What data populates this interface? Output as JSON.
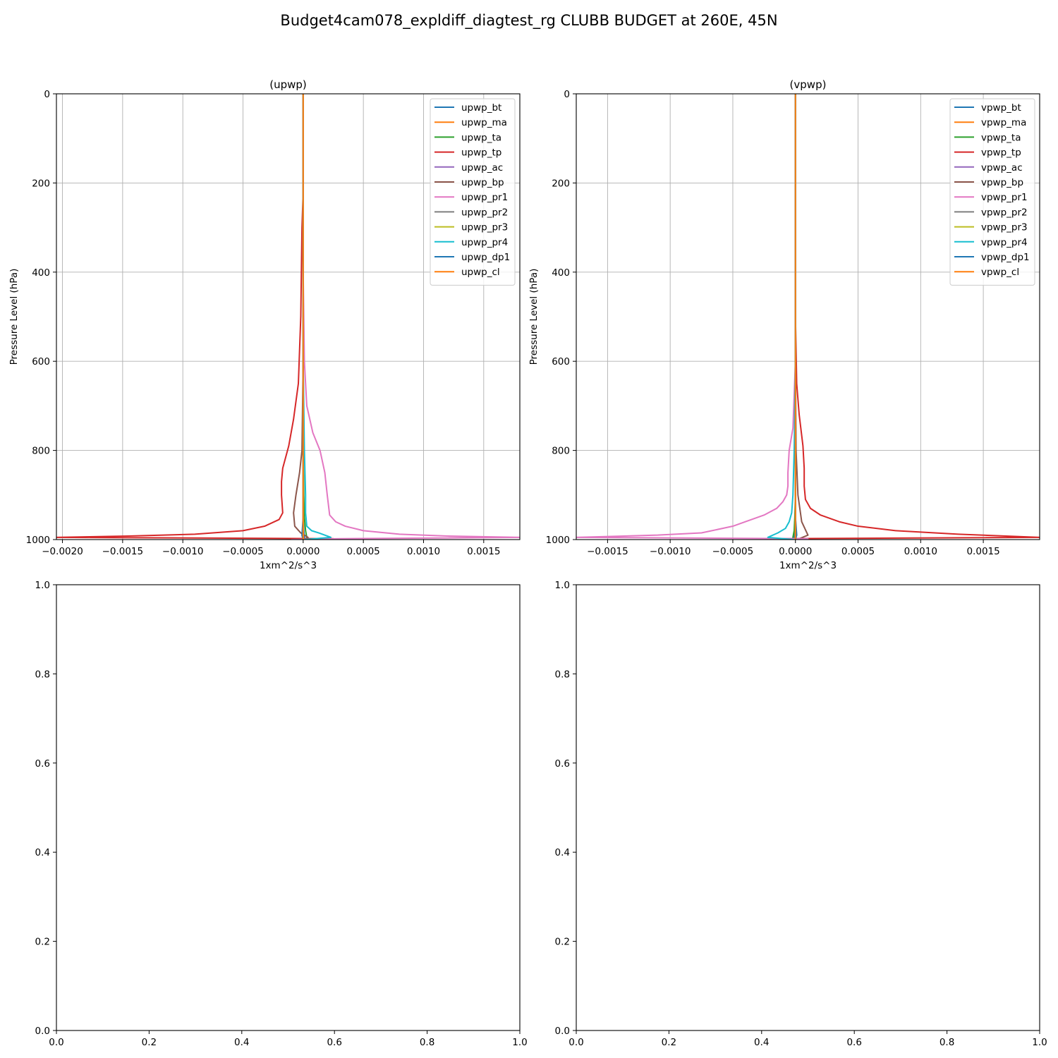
{
  "figure": {
    "suptitle": "Budget4cam078_expldiff_diagtest_rg CLUBB BUDGET at 260E, 45N"
  },
  "chart_data": [
    {
      "type": "line",
      "title": "(upwp)",
      "xlabel": "1xm^2/s^3",
      "ylabel": "Pressure Level (hPa)",
      "xlim": [
        -0.00205,
        0.0018
      ],
      "ylim": [
        1000,
        0
      ],
      "x_ticks": [
        -0.002,
        -0.0015,
        -0.001,
        -0.0005,
        0.0,
        0.0005,
        0.001,
        0.0015
      ],
      "x_tick_labels": [
        "−0.0020",
        "−0.0015",
        "−0.0010",
        "−0.0005",
        "0.0000",
        "0.0005",
        "0.0010",
        "0.0015"
      ],
      "y_ticks": [
        0,
        200,
        400,
        600,
        800,
        1000
      ],
      "y_tick_labels": [
        "0",
        "200",
        "400",
        "600",
        "800",
        "1000"
      ],
      "grid": true,
      "legend_loc": "top-right",
      "series": [
        {
          "name": "upwp_bt",
          "color": "#1f77b4",
          "x": [
            0,
            0,
            0,
            0,
            0,
            0,
            0,
            5e-06,
            1e-05,
            0
          ],
          "y": [
            0,
            200,
            400,
            600,
            800,
            900,
            950,
            980,
            995,
            1000
          ]
        },
        {
          "name": "upwp_ma",
          "color": "#ff7f0e",
          "x": [
            0,
            0,
            0,
            0,
            0,
            0,
            0,
            0,
            0,
            0
          ],
          "y": [
            0,
            200,
            400,
            600,
            800,
            900,
            950,
            980,
            995,
            1000
          ]
        },
        {
          "name": "upwp_ta",
          "color": "#2ca02c",
          "x": [
            0,
            0,
            0,
            0,
            0,
            5e-06,
            1e-05,
            2e-05,
            3e-05,
            3e-05
          ],
          "y": [
            0,
            200,
            400,
            600,
            800,
            900,
            950,
            980,
            995,
            1000
          ]
        },
        {
          "name": "upwp_tp",
          "color": "#d62728",
          "x": [
            0,
            0,
            -1e-05,
            -2e-05,
            -4e-05,
            -8e-05,
            -0.00012,
            -0.00017,
            -0.00018,
            -0.00018,
            -0.00017,
            -0.0002,
            -0.00032,
            -0.0005,
            -0.0009,
            -0.00145,
            -0.00205,
            0.00025,
            3e-05
          ],
          "y": [
            0,
            220,
            300,
            500,
            650,
            730,
            790,
            840,
            870,
            900,
            940,
            955,
            970,
            980,
            988,
            992,
            995,
            998,
            1000
          ]
        },
        {
          "name": "upwp_ac",
          "color": "#9467bd",
          "x": [
            0,
            0,
            0,
            0,
            0,
            0,
            0,
            0,
            0
          ],
          "y": [
            0,
            200,
            400,
            600,
            800,
            900,
            950,
            980,
            1000
          ]
        },
        {
          "name": "upwp_bp",
          "color": "#8c564b",
          "x": [
            0,
            0,
            0,
            0,
            -1e-05,
            -3e-05,
            -6e-05,
            -8e-05,
            -7e-05,
            -2e-05,
            4e-05,
            0
          ],
          "y": [
            0,
            200,
            400,
            600,
            800,
            850,
            900,
            940,
            970,
            985,
            995,
            1000
          ]
        },
        {
          "name": "upwp_pr1",
          "color": "#e377c2",
          "x": [
            0,
            0,
            1e-05,
            3e-05,
            8e-05,
            0.00014,
            0.00018,
            0.0002,
            0.00022,
            0.00027,
            0.00035,
            0.0005,
            0.0008,
            0.0012,
            0.0018,
            0.0003,
            -0.0001
          ],
          "y": [
            0,
            400,
            600,
            700,
            760,
            800,
            850,
            900,
            945,
            960,
            970,
            980,
            988,
            992,
            995,
            998,
            1000
          ]
        },
        {
          "name": "upwp_pr2",
          "color": "#7f7f7f",
          "x": [
            0,
            0,
            0,
            0,
            0,
            0,
            0,
            0,
            0
          ],
          "y": [
            0,
            200,
            400,
            600,
            800,
            900,
            950,
            980,
            1000
          ]
        },
        {
          "name": "upwp_pr3",
          "color": "#bcbd22",
          "x": [
            0,
            0,
            0,
            0,
            0,
            0,
            0,
            0,
            0
          ],
          "y": [
            0,
            200,
            400,
            600,
            800,
            900,
            950,
            980,
            1000
          ]
        },
        {
          "name": "upwp_pr4",
          "color": "#17becf",
          "x": [
            0,
            0,
            0,
            1e-05,
            2e-05,
            2e-05,
            3e-05,
            7e-05,
            0.00013,
            0.00023,
            1e-05
          ],
          "y": [
            0,
            400,
            600,
            800,
            900,
            940,
            970,
            980,
            985,
            995,
            1000
          ]
        },
        {
          "name": "upwp_dp1",
          "color": "#1f77b4",
          "x": [
            0,
            0,
            0,
            0,
            0,
            0,
            0,
            -1e-05,
            0
          ],
          "y": [
            0,
            200,
            400,
            600,
            800,
            900,
            950,
            990,
            1000
          ]
        },
        {
          "name": "upwp_cl",
          "color": "#ff7f0e",
          "x": [
            0,
            0,
            0,
            0,
            0,
            0,
            0,
            0,
            0
          ],
          "y": [
            0,
            200,
            400,
            600,
            800,
            900,
            950,
            980,
            1000
          ]
        }
      ]
    },
    {
      "type": "line",
      "title": "(vpwp)",
      "xlabel": "1xm^2/s^3",
      "ylabel": "Pressure Level (hPa)",
      "xlim": [
        -0.00175,
        0.00195
      ],
      "ylim": [
        1000,
        0
      ],
      "x_ticks": [
        -0.0015,
        -0.001,
        -0.0005,
        0.0,
        0.0005,
        0.001,
        0.0015
      ],
      "x_tick_labels": [
        "−0.0015",
        "−0.0010",
        "−0.0005",
        "0.0000",
        "0.0005",
        "0.0010",
        "0.0015"
      ],
      "y_ticks": [
        0,
        200,
        400,
        600,
        800,
        1000
      ],
      "y_tick_labels": [
        "0",
        "200",
        "400",
        "600",
        "800",
        "1000"
      ],
      "grid": true,
      "legend_loc": "top-right",
      "series": [
        {
          "name": "vpwp_bt",
          "color": "#1f77b4",
          "x": [
            0,
            0,
            0,
            0,
            0,
            0,
            0,
            -5e-06,
            -1e-05,
            0
          ],
          "y": [
            0,
            200,
            400,
            600,
            800,
            900,
            950,
            980,
            995,
            1000
          ]
        },
        {
          "name": "vpwp_ma",
          "color": "#ff7f0e",
          "x": [
            0,
            0,
            0,
            0,
            0,
            0,
            0,
            0,
            0,
            0
          ],
          "y": [
            0,
            200,
            400,
            600,
            800,
            900,
            950,
            980,
            995,
            1000
          ]
        },
        {
          "name": "vpwp_ta",
          "color": "#2ca02c",
          "x": [
            0,
            0,
            0,
            0,
            0,
            0,
            -5e-06,
            -1e-05,
            -2e-05,
            -2e-05
          ],
          "y": [
            0,
            200,
            400,
            600,
            800,
            900,
            950,
            980,
            995,
            1000
          ]
        },
        {
          "name": "vpwp_tp",
          "color": "#d62728",
          "x": [
            0,
            0,
            0,
            1e-05,
            3e-05,
            6e-05,
            7e-05,
            7e-05,
            8e-05,
            0.00012,
            0.0002,
            0.00035,
            0.0005,
            0.0008,
            0.0013,
            0.00195,
            -0.0002,
            -3e-05
          ],
          "y": [
            0,
            200,
            500,
            650,
            720,
            790,
            840,
            880,
            910,
            930,
            945,
            960,
            970,
            980,
            988,
            995,
            998,
            1000
          ]
        },
        {
          "name": "vpwp_ac",
          "color": "#9467bd",
          "x": [
            0,
            0,
            0,
            0,
            0,
            0,
            0,
            0,
            0
          ],
          "y": [
            0,
            200,
            400,
            600,
            800,
            900,
            950,
            980,
            1000
          ]
        },
        {
          "name": "vpwp_bp",
          "color": "#8c564b",
          "x": [
            0,
            0,
            0,
            0,
            5e-06,
            2e-05,
            5e-05,
            0.0001,
            3e-05,
            0
          ],
          "y": [
            0,
            200,
            400,
            600,
            800,
            900,
            960,
            990,
            998,
            1000
          ]
        },
        {
          "name": "vpwp_pr1",
          "color": "#e377c2",
          "x": [
            0,
            0,
            -2e-05,
            -5e-05,
            -6e-05,
            -6e-05,
            -7e-05,
            -0.0001,
            -0.00015,
            -0.00025,
            -0.0004,
            -0.0005,
            -0.00075,
            -0.0011,
            -0.00175,
            0.0001,
            0
          ],
          "y": [
            0,
            600,
            750,
            800,
            850,
            880,
            900,
            915,
            930,
            945,
            960,
            970,
            985,
            990,
            995,
            998,
            1000
          ]
        },
        {
          "name": "vpwp_pr2",
          "color": "#7f7f7f",
          "x": [
            0,
            0,
            0,
            0,
            0,
            0,
            0,
            0,
            0
          ],
          "y": [
            0,
            200,
            400,
            600,
            800,
            900,
            950,
            980,
            1000
          ]
        },
        {
          "name": "vpwp_pr3",
          "color": "#bcbd22",
          "x": [
            0,
            0,
            0,
            0,
            0,
            0,
            0,
            0,
            0
          ],
          "y": [
            0,
            200,
            400,
            600,
            800,
            900,
            950,
            980,
            1000
          ]
        },
        {
          "name": "vpwp_pr4",
          "color": "#17becf",
          "x": [
            0,
            0,
            0,
            -1e-05,
            -2e-05,
            -3e-05,
            -5e-05,
            -8e-05,
            -0.00014,
            -0.00022,
            -1e-05
          ],
          "y": [
            0,
            400,
            600,
            800,
            900,
            940,
            960,
            975,
            985,
            995,
            1000
          ]
        },
        {
          "name": "vpwp_dp1",
          "color": "#1f77b4",
          "x": [
            0,
            0,
            0,
            0,
            0,
            0,
            0,
            1e-05,
            0
          ],
          "y": [
            0,
            200,
            400,
            600,
            800,
            900,
            950,
            990,
            1000
          ]
        },
        {
          "name": "vpwp_cl",
          "color": "#ff7f0e",
          "x": [
            0,
            0,
            0,
            0,
            0,
            0,
            0,
            0,
            0
          ],
          "y": [
            0,
            200,
            400,
            600,
            800,
            900,
            950,
            980,
            1000
          ]
        }
      ]
    },
    {
      "type": "line",
      "title": "",
      "xlim": [
        0,
        1
      ],
      "ylim": [
        0,
        1
      ],
      "x_ticks": [
        0,
        0.2,
        0.4,
        0.6,
        0.8,
        1.0
      ],
      "x_tick_labels": [
        "0.0",
        "0.2",
        "0.4",
        "0.6",
        "0.8",
        "1.0"
      ],
      "y_ticks": [
        0,
        0.2,
        0.4,
        0.6,
        0.8,
        1.0
      ],
      "y_tick_labels": [
        "0.0",
        "0.2",
        "0.4",
        "0.6",
        "0.8",
        "1.0"
      ],
      "grid": false,
      "series": []
    },
    {
      "type": "line",
      "title": "",
      "xlim": [
        0,
        1
      ],
      "ylim": [
        0,
        1
      ],
      "x_ticks": [
        0,
        0.2,
        0.4,
        0.6,
        0.8,
        1.0
      ],
      "x_tick_labels": [
        "0.0",
        "0.2",
        "0.4",
        "0.6",
        "0.8",
        "1.0"
      ],
      "y_ticks": [
        0,
        0.2,
        0.4,
        0.6,
        0.8,
        1.0
      ],
      "y_tick_labels": [
        "0.0",
        "0.2",
        "0.4",
        "0.6",
        "0.8",
        "1.0"
      ],
      "grid": false,
      "series": []
    }
  ]
}
